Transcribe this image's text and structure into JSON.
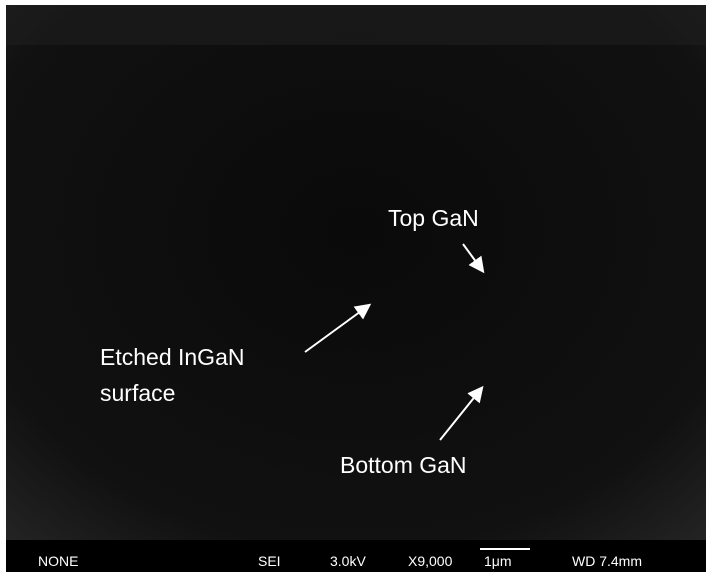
{
  "image": {
    "annotations": {
      "top_gan": "Top GaN",
      "etched": [
        "Etched InGaN",
        "surface"
      ],
      "bottom_gan": "Bottom GaN"
    },
    "info_bar": {
      "detector_mode": "NONE",
      "signal": "SEI",
      "voltage": "3.0kV",
      "magnification": "X9,000",
      "scale_bar": "1μm",
      "working_distance": "WD 7.4mm"
    }
  }
}
